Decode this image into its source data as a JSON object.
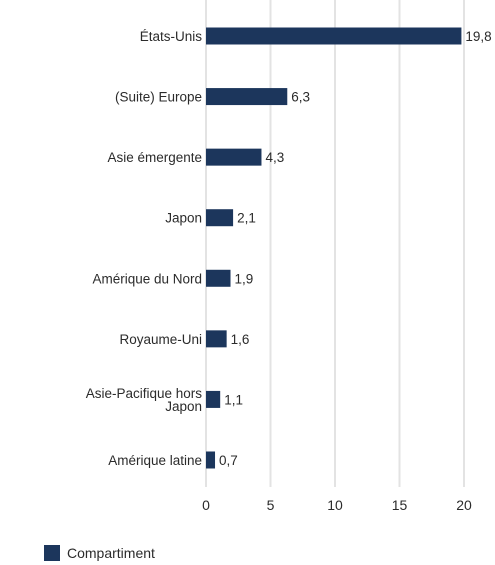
{
  "chart_data": {
    "type": "bar",
    "orientation": "horizontal",
    "categories": [
      "États-Unis",
      "(Suite) Europe",
      "Asie émergente",
      "Japon",
      "Amérique du Nord",
      "Royaume-Uni",
      [
        "Asie-Pacifique hors",
        "Japon"
      ],
      "Amérique latine"
    ],
    "series": [
      {
        "name": "Compartiment",
        "values": [
          19.8,
          6.3,
          4.3,
          2.1,
          1.9,
          1.6,
          1.1,
          0.7
        ],
        "color": "#1c365c"
      }
    ],
    "value_labels": [
      "19,8",
      "6,3",
      "4,3",
      "2,1",
      "1,9",
      "1,6",
      "1,1",
      "0,7"
    ],
    "xlim": [
      0,
      20
    ],
    "x_ticks": [
      0,
      5,
      10,
      15,
      20
    ],
    "x_tick_labels": [
      "0",
      "5",
      "10",
      "15",
      "20"
    ],
    "grid": "vertical",
    "legend_position": "bottom-left"
  }
}
